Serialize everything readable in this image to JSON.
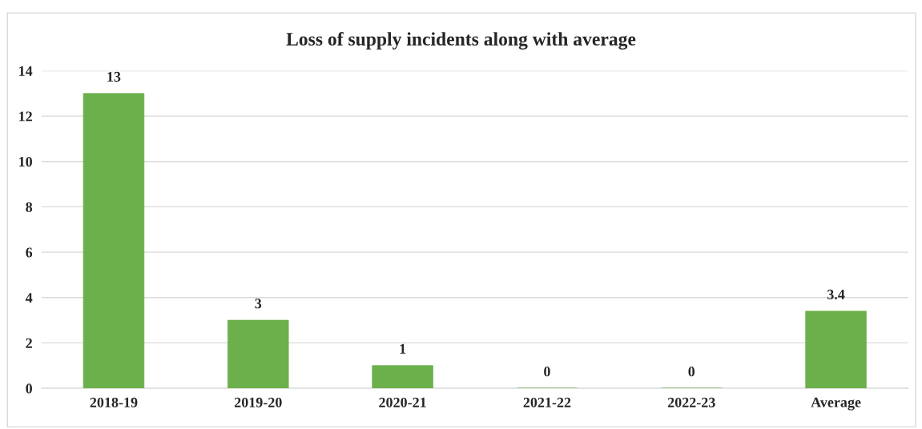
{
  "chart_data": {
    "type": "bar",
    "title": "Loss of supply incidents along with average",
    "categories": [
      "2018-19",
      "2019-20",
      "2020-21",
      "2021-22",
      "2022-23",
      "Average"
    ],
    "values": [
      13,
      3,
      1,
      0,
      0,
      3.4
    ],
    "color": "#6bb04a",
    "ylim": [
      0,
      14
    ],
    "yticks": [
      0,
      2,
      4,
      6,
      8,
      10,
      12,
      14
    ],
    "grid": "y",
    "data_labels": true
  }
}
